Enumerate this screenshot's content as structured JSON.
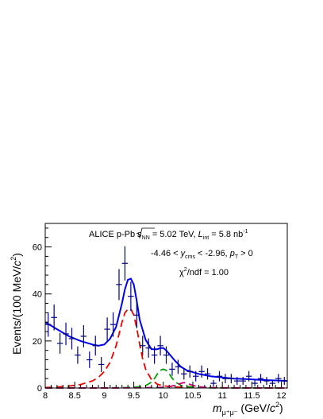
{
  "chart_data": {
    "type": "scatter",
    "title": "",
    "xlabel_main": "m",
    "xlabel_sub": "μ⁺μ⁻",
    "xlabel_unit_prefix": " (GeV/",
    "xlabel_unit_c": "c",
    "xlabel_unit_pow": "2",
    "xlabel_unit_suffix": ")",
    "ylabel_prefix": "Events/(100 MeV/",
    "ylabel_c": "c",
    "ylabel_pow": "2",
    "ylabel_suffix": ")",
    "xlim": [
      8,
      12.1
    ],
    "ylim": [
      0,
      70
    ],
    "x_ticks": [
      8,
      8.5,
      9,
      9.5,
      10,
      10.5,
      11,
      11.5,
      12
    ],
    "x_tick_labels": [
      "8",
      "8.5",
      "9",
      "9.5",
      "10",
      "10.5",
      "11",
      "11.5",
      "12"
    ],
    "y_ticks": [
      0,
      20,
      40,
      60
    ],
    "y_tick_labels": [
      "0",
      "20",
      "40",
      "60"
    ],
    "annotations": {
      "line1_a": "ALICE p-Pb ",
      "line1_s": "s",
      "line1_nn": "NN",
      "line1_b": " = 5.02 TeV, ",
      "line1_L": "L",
      "line1_int": "int",
      "line1_c": " = 5.8 nb",
      "line1_exp": "-1",
      "line2_a": "-4.46 < ",
      "line2_y": "y",
      "line2_cms": "cms",
      "line2_b": " < -2.96, ",
      "line2_p": "p",
      "line2_T": "T",
      "line2_c": " > 0",
      "line3_chi": "χ",
      "line3_exp": "2",
      "line3_rest": "/ndf = 1.00"
    },
    "data_points": {
      "x": [
        8.05,
        8.15,
        8.25,
        8.35,
        8.45,
        8.55,
        8.65,
        8.75,
        8.85,
        8.95,
        9.05,
        9.15,
        9.25,
        9.35,
        9.45,
        9.55,
        9.65,
        9.75,
        9.85,
        9.95,
        10.05,
        10.15,
        10.25,
        10.35,
        10.45,
        10.55,
        10.65,
        10.75,
        10.85,
        10.95,
        11.05,
        11.15,
        11.25,
        11.35,
        11.45,
        11.55,
        11.65,
        11.75,
        11.85,
        11.95,
        12.05
      ],
      "y": [
        27,
        30,
        19,
        23,
        21,
        14,
        22,
        12,
        18,
        10,
        25,
        27,
        44,
        53,
        39,
        31,
        18,
        17,
        14,
        18,
        14,
        8,
        9,
        6,
        7,
        5,
        7,
        6,
        2,
        5,
        4,
        4,
        3,
        3,
        5,
        2,
        4,
        3,
        2,
        4,
        3
      ],
      "yerr": [
        5.2,
        5.5,
        4.4,
        4.8,
        4.6,
        3.7,
        4.7,
        3.5,
        4.2,
        3.2,
        5.0,
        5.2,
        6.6,
        7.3,
        6.2,
        5.6,
        4.2,
        4.1,
        3.7,
        4.2,
        3.7,
        2.8,
        3.0,
        2.4,
        2.6,
        2.2,
        2.6,
        2.4,
        1.4,
        2.2,
        2.0,
        2.0,
        1.7,
        1.7,
        2.2,
        1.4,
        2.0,
        1.7,
        1.4,
        2.0,
        1.7
      ]
    },
    "series": [
      {
        "key": "total_fit",
        "color": "#0000ee",
        "style": "solid",
        "x": [
          8.0,
          8.2,
          8.4,
          8.6,
          8.8,
          8.9,
          9.0,
          9.1,
          9.2,
          9.3,
          9.35,
          9.4,
          9.45,
          9.5,
          9.55,
          9.6,
          9.7,
          9.8,
          9.9,
          9.95,
          10.0,
          10.05,
          10.1,
          10.2,
          10.3,
          10.4,
          10.6,
          10.8,
          11.0,
          11.2,
          11.4,
          11.6,
          11.8,
          12.0,
          12.1
        ],
        "y": [
          28,
          25,
          22,
          20,
          18.5,
          18,
          18.5,
          21,
          26,
          36,
          42,
          46,
          46.5,
          44,
          37,
          29,
          20.5,
          16.5,
          16.5,
          17,
          17,
          16,
          14.5,
          11.5,
          9,
          7.5,
          6,
          5,
          4.5,
          4,
          3.8,
          3.5,
          3.3,
          3.1,
          3
        ]
      },
      {
        "key": "upsilon_1s",
        "color": "#ee0000",
        "style": "dashed",
        "x": [
          8.0,
          8.2,
          8.4,
          8.6,
          8.8,
          8.9,
          9.0,
          9.1,
          9.2,
          9.25,
          9.3,
          9.35,
          9.4,
          9.45,
          9.5,
          9.55,
          9.6,
          9.65,
          9.7,
          9.8,
          9.9,
          10.0,
          10.2,
          10.4,
          10.6,
          10.8,
          11.0,
          11.5,
          12.1
        ],
        "y": [
          0.2,
          0.4,
          0.8,
          1.5,
          3.0,
          4.5,
          7.0,
          11.0,
          18.0,
          23.0,
          28.0,
          32.0,
          33.5,
          33.5,
          31.0,
          25.5,
          18.5,
          12.5,
          8.0,
          3.5,
          1.6,
          0.9,
          0.4,
          0.25,
          0.15,
          0.1,
          0.1,
          0.05,
          0.0
        ]
      },
      {
        "key": "upsilon_2s",
        "color": "#00a000",
        "style": "dashed",
        "x": [
          8.0,
          9.0,
          9.4,
          9.6,
          9.7,
          9.8,
          9.85,
          9.9,
          9.95,
          10.0,
          10.05,
          10.1,
          10.15,
          10.2,
          10.3,
          10.4,
          10.6,
          10.8,
          11.0,
          12.1
        ],
        "y": [
          0.0,
          0.05,
          0.2,
          0.5,
          1.0,
          2.5,
          4.0,
          6.0,
          7.5,
          8.0,
          7.5,
          6.0,
          4.2,
          2.6,
          1.1,
          0.6,
          0.25,
          0.1,
          0.05,
          0.0
        ]
      },
      {
        "key": "upsilon_3s",
        "color": "#d0007a",
        "style": "dashed",
        "x": [
          8.0,
          9.5,
          10.0,
          10.1,
          10.2,
          10.3,
          10.35,
          10.4,
          10.5,
          10.6,
          10.8,
          11.0,
          12.1
        ],
        "y": [
          0.0,
          0.05,
          0.3,
          0.6,
          1.2,
          2.0,
          2.3,
          2.0,
          1.1,
          0.5,
          0.15,
          0.05,
          0.0
        ]
      }
    ],
    "colors": {
      "data": "#000080",
      "total_fit": "#0000ee",
      "upsilon_1s": "#ee0000",
      "upsilon_2s": "#00a000",
      "upsilon_3s": "#d0007a"
    },
    "grid": false,
    "legend": "none"
  }
}
